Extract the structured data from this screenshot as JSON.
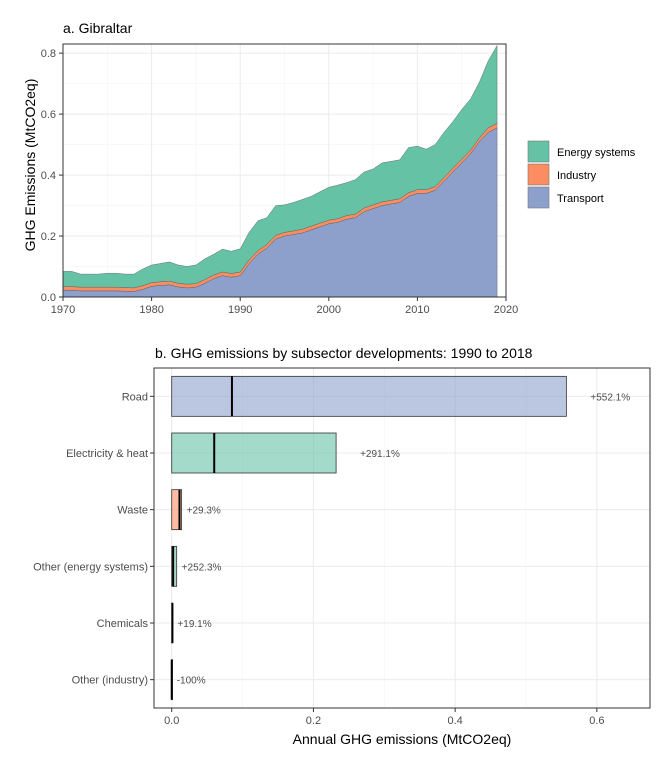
{
  "chart_data": [
    {
      "type": "area",
      "stacked": true,
      "title": "a. Gibraltar",
      "xlabel": "",
      "ylabel": "GHG Emissions (MtCO2eq)",
      "xlim": [
        1970,
        2020
      ],
      "ylim": [
        0,
        0.83
      ],
      "x_ticks": [
        1970,
        1980,
        1990,
        2000,
        2010,
        2020
      ],
      "y_ticks": [
        0.0,
        0.2,
        0.4,
        0.6,
        0.8
      ],
      "y_tick_labels": [
        "0.0",
        "0.2",
        "0.4",
        "0.6",
        "0.8"
      ],
      "grid": true,
      "legend_position": "right",
      "x": [
        1970,
        1971,
        1972,
        1973,
        1974,
        1975,
        1976,
        1977,
        1978,
        1979,
        1980,
        1981,
        1982,
        1983,
        1984,
        1985,
        1986,
        1987,
        1988,
        1989,
        1990,
        1991,
        1992,
        1993,
        1994,
        1995,
        1996,
        1997,
        1998,
        1999,
        2000,
        2001,
        2002,
        2003,
        2004,
        2005,
        2006,
        2007,
        2008,
        2009,
        2010,
        2011,
        2012,
        2013,
        2014,
        2015,
        2016,
        2017,
        2018,
        2019
      ],
      "series": [
        {
          "name": "Transport",
          "color": "#8da0cb",
          "values": [
            0.022,
            0.022,
            0.02,
            0.02,
            0.02,
            0.02,
            0.02,
            0.019,
            0.018,
            0.025,
            0.035,
            0.038,
            0.04,
            0.033,
            0.03,
            0.032,
            0.045,
            0.06,
            0.07,
            0.065,
            0.07,
            0.11,
            0.14,
            0.16,
            0.19,
            0.2,
            0.205,
            0.21,
            0.22,
            0.23,
            0.24,
            0.245,
            0.255,
            0.26,
            0.28,
            0.29,
            0.3,
            0.305,
            0.31,
            0.33,
            0.34,
            0.34,
            0.35,
            0.38,
            0.41,
            0.44,
            0.47,
            0.51,
            0.54,
            0.555
          ]
        },
        {
          "name": "Industry",
          "color": "#fc8d62",
          "values": [
            0.012,
            0.012,
            0.012,
            0.012,
            0.012,
            0.012,
            0.012,
            0.012,
            0.012,
            0.012,
            0.012,
            0.012,
            0.012,
            0.012,
            0.012,
            0.012,
            0.012,
            0.012,
            0.012,
            0.012,
            0.012,
            0.012,
            0.012,
            0.012,
            0.012,
            0.012,
            0.012,
            0.012,
            0.012,
            0.012,
            0.012,
            0.012,
            0.012,
            0.012,
            0.012,
            0.012,
            0.012,
            0.012,
            0.012,
            0.012,
            0.012,
            0.012,
            0.012,
            0.012,
            0.012,
            0.012,
            0.012,
            0.012,
            0.015,
            0.015
          ]
        },
        {
          "name": "Energy systems",
          "color": "#66c2a5",
          "values": [
            0.05,
            0.05,
            0.043,
            0.043,
            0.043,
            0.046,
            0.046,
            0.044,
            0.045,
            0.055,
            0.058,
            0.06,
            0.063,
            0.06,
            0.058,
            0.061,
            0.068,
            0.068,
            0.075,
            0.073,
            0.076,
            0.09,
            0.098,
            0.088,
            0.098,
            0.09,
            0.093,
            0.098,
            0.098,
            0.103,
            0.108,
            0.11,
            0.108,
            0.113,
            0.118,
            0.118,
            0.128,
            0.128,
            0.128,
            0.148,
            0.143,
            0.133,
            0.138,
            0.148,
            0.153,
            0.163,
            0.168,
            0.183,
            0.22,
            0.255
          ]
        }
      ]
    },
    {
      "type": "bar",
      "orientation": "horizontal",
      "title": "b. GHG emissions by subsector developments: 1990 to 2018",
      "xlabel": "Annual GHG emissions (MtCO2eq)",
      "ylabel": "",
      "xlim": [
        -0.025,
        0.675
      ],
      "x_ticks": [
        0.0,
        0.2,
        0.4,
        0.6
      ],
      "x_tick_labels": [
        "0.0",
        "0.2",
        "0.4",
        "0.6"
      ],
      "grid": true,
      "categories": [
        "Road",
        "Electricity & heat",
        "Waste",
        "Other (energy systems)",
        "Chemicals",
        "Other (industry)"
      ],
      "values_2018": [
        0.557,
        0.232,
        0.014,
        0.007,
        0.001,
        0.0
      ],
      "values_1990": [
        0.085,
        0.06,
        0.011,
        0.002,
        0.001,
        0.0
      ],
      "bar_colors": [
        "#8da0cb",
        "#66c2a5",
        "#fc8d62",
        "#66c2a5",
        "#fc8d62",
        "#fc8d62"
      ],
      "labels": [
        "+552.1%",
        "+291.1%",
        "+29.3%",
        "+252.3%",
        "+19.1%",
        "-100%"
      ]
    }
  ]
}
